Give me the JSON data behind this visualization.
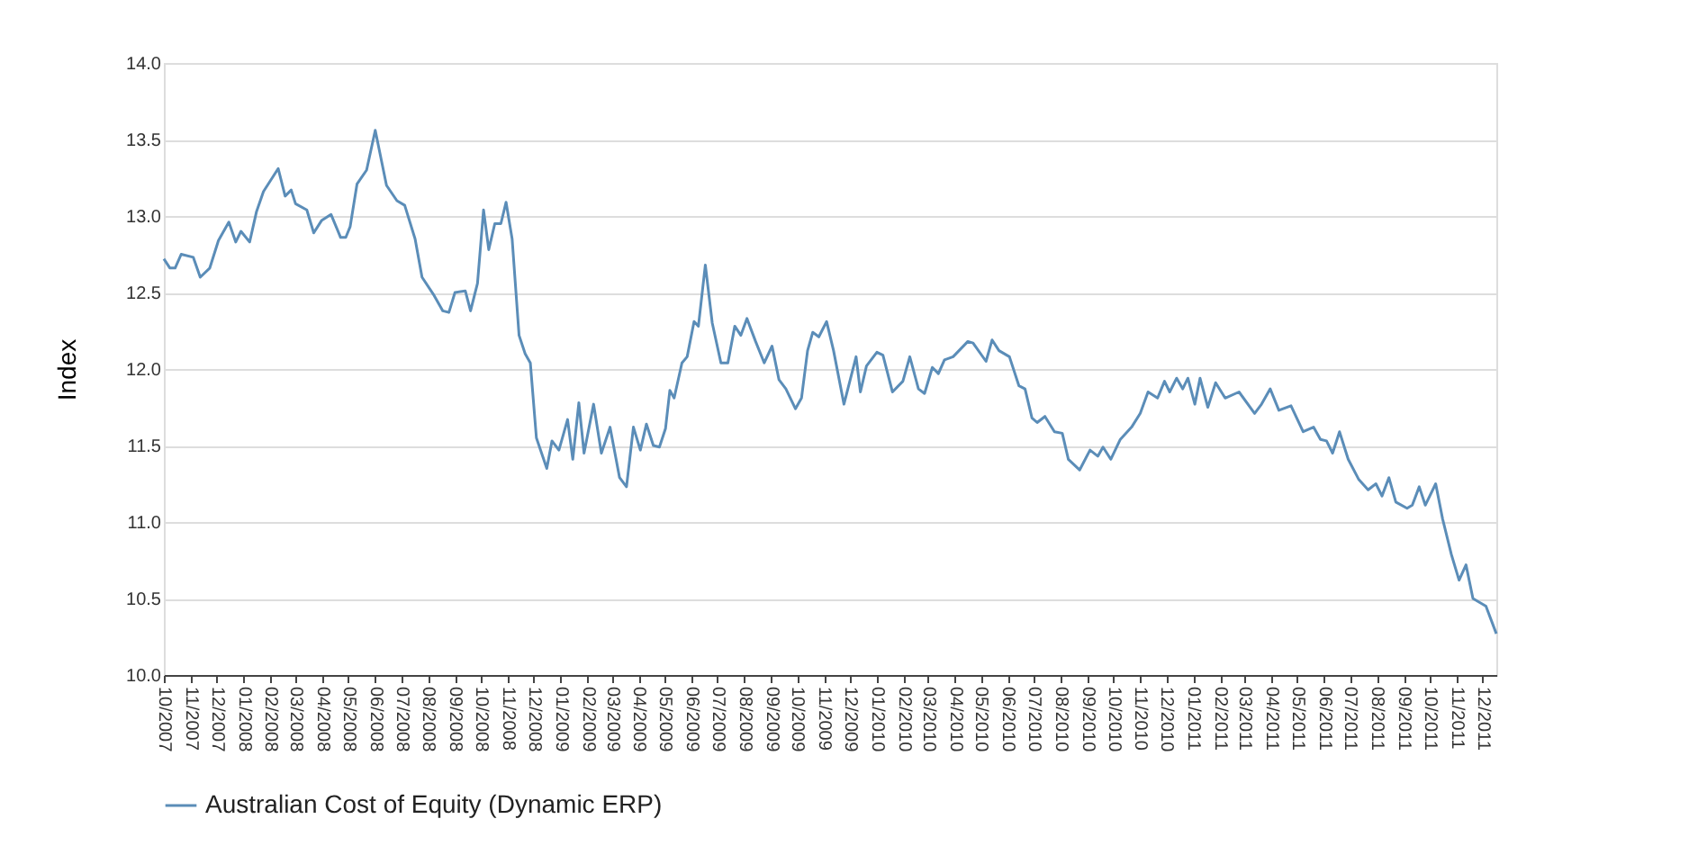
{
  "chart_data": {
    "type": "line",
    "ylabel": "Index",
    "legend": "bottom",
    "grid": "y",
    "line_style": "solid",
    "marker": "none",
    "xlim": [
      "2007-10-01",
      "2011-12-17"
    ],
    "xticks": [
      {
        "value": "2007-10",
        "label": "10/2007"
      },
      {
        "value": "2007-11",
        "label": "11/2007"
      },
      {
        "value": "2007-12",
        "label": "12/2007"
      },
      {
        "value": "2008-01",
        "label": "01/2008"
      },
      {
        "value": "2008-02",
        "label": "02/2008"
      },
      {
        "value": "2008-03",
        "label": "03/2008"
      },
      {
        "value": "2008-04",
        "label": "04/2008"
      },
      {
        "value": "2008-05",
        "label": "05/2008"
      },
      {
        "value": "2008-06",
        "label": "06/2008"
      },
      {
        "value": "2008-07",
        "label": "07/2008"
      },
      {
        "value": "2008-08",
        "label": "08/2008"
      },
      {
        "value": "2008-09",
        "label": "09/2008"
      },
      {
        "value": "2008-10",
        "label": "10/2008"
      },
      {
        "value": "2008-11",
        "label": "11/2008"
      },
      {
        "value": "2008-12",
        "label": "12/2008"
      },
      {
        "value": "2009-01",
        "label": "01/2009"
      },
      {
        "value": "2009-02",
        "label": "02/2009"
      },
      {
        "value": "2009-03",
        "label": "03/2009"
      },
      {
        "value": "2009-04",
        "label": "04/2009"
      },
      {
        "value": "2009-05",
        "label": "05/2009"
      },
      {
        "value": "2009-06",
        "label": "06/2009"
      },
      {
        "value": "2009-07",
        "label": "07/2009"
      },
      {
        "value": "2009-08",
        "label": "08/2009"
      },
      {
        "value": "2009-09",
        "label": "09/2009"
      },
      {
        "value": "2009-10",
        "label": "10/2009"
      },
      {
        "value": "2009-11",
        "label": "11/2009"
      },
      {
        "value": "2009-12",
        "label": "12/2009"
      },
      {
        "value": "2010-01",
        "label": "01/2010"
      },
      {
        "value": "2010-02",
        "label": "02/2010"
      },
      {
        "value": "2010-03",
        "label": "03/2010"
      },
      {
        "value": "2010-04",
        "label": "04/2010"
      },
      {
        "value": "2010-05",
        "label": "05/2010"
      },
      {
        "value": "2010-06",
        "label": "06/2010"
      },
      {
        "value": "2010-07",
        "label": "07/2010"
      },
      {
        "value": "2010-08",
        "label": "08/2010"
      },
      {
        "value": "2010-09",
        "label": "09/2010"
      },
      {
        "value": "2010-10",
        "label": "10/2010"
      },
      {
        "value": "2010-11",
        "label": "11/2010"
      },
      {
        "value": "2010-12",
        "label": "12/2010"
      },
      {
        "value": "2011-01",
        "label": "01/2011"
      },
      {
        "value": "2011-02",
        "label": "02/2011"
      },
      {
        "value": "2011-03",
        "label": "03/2011"
      },
      {
        "value": "2011-04",
        "label": "04/2011"
      },
      {
        "value": "2011-05",
        "label": "05/2011"
      },
      {
        "value": "2011-06",
        "label": "06/2011"
      },
      {
        "value": "2011-07",
        "label": "07/2011"
      },
      {
        "value": "2011-08",
        "label": "08/2011"
      },
      {
        "value": "2011-09",
        "label": "09/2011"
      },
      {
        "value": "2011-10",
        "label": "10/2011"
      },
      {
        "value": "2011-11",
        "label": "11/2011"
      },
      {
        "value": "2011-12",
        "label": "12/2011"
      }
    ],
    "ylim": [
      10,
      14
    ],
    "yticks": [
      {
        "value": 10,
        "label": "10.0"
      },
      {
        "value": 10.5,
        "label": "10.5"
      },
      {
        "value": 11,
        "label": "11.0"
      },
      {
        "value": 11.5,
        "label": "11.5"
      },
      {
        "value": 12,
        "label": "12.0"
      },
      {
        "value": 12.5,
        "label": "12.5"
      },
      {
        "value": 13,
        "label": "13.0"
      },
      {
        "value": 13.5,
        "label": "13.5"
      },
      {
        "value": 14,
        "label": "14.0"
      }
    ],
    "x": [
      "2007-10-01",
      "2007-10-08",
      "2007-10-14",
      "2007-10-21",
      "2007-11-04",
      "2007-11-12",
      "2007-11-23",
      "2007-12-03",
      "2007-12-15",
      "2007-12-23",
      "2007-12-29",
      "2008-01-08",
      "2008-01-16",
      "2008-01-24",
      "2008-02-10",
      "2008-02-18",
      "2008-02-25",
      "2008-03-01",
      "2008-03-14",
      "2008-03-22",
      "2008-03-31",
      "2008-04-11",
      "2008-04-22",
      "2008-04-28",
      "2008-05-03",
      "2008-05-11",
      "2008-05-22",
      "2008-06-01",
      "2008-06-14",
      "2008-06-26",
      "2008-07-05",
      "2008-07-17",
      "2008-07-25",
      "2008-08-08",
      "2008-08-18",
      "2008-08-25",
      "2008-09-01",
      "2008-09-13",
      "2008-09-19",
      "2008-09-27",
      "2008-10-04",
      "2008-10-10",
      "2008-10-17",
      "2008-10-24",
      "2008-10-30",
      "2008-11-06",
      "2008-11-14",
      "2008-11-21",
      "2008-11-27",
      "2008-12-04",
      "2008-12-16",
      "2008-12-22",
      "2008-12-30",
      "2009-01-09",
      "2009-01-15",
      "2009-01-22",
      "2009-01-28",
      "2009-02-08",
      "2009-02-17",
      "2009-02-27",
      "2009-03-10",
      "2009-03-18",
      "2009-03-26",
      "2009-04-03",
      "2009-04-10",
      "2009-04-18",
      "2009-04-25",
      "2009-05-02",
      "2009-05-07",
      "2009-05-12",
      "2009-05-21",
      "2009-05-27",
      "2009-06-04",
      "2009-06-09",
      "2009-06-17",
      "2009-06-25",
      "2009-07-05",
      "2009-07-13",
      "2009-07-21",
      "2009-07-28",
      "2009-08-04",
      "2009-08-14",
      "2009-08-24",
      "2009-09-02",
      "2009-09-10",
      "2009-09-18",
      "2009-09-29",
      "2009-10-06",
      "2009-10-13",
      "2009-10-19",
      "2009-10-26",
      "2009-11-04",
      "2009-11-12",
      "2009-11-24",
      "2009-12-08",
      "2009-12-13",
      "2009-12-20",
      "2010-01-01",
      "2010-01-08",
      "2010-01-19",
      "2010-01-31",
      "2010-02-08",
      "2010-02-18",
      "2010-02-25",
      "2010-03-06",
      "2010-03-13",
      "2010-03-20",
      "2010-03-30",
      "2010-04-16",
      "2010-04-22",
      "2010-05-07",
      "2010-05-14",
      "2010-05-22",
      "2010-06-03",
      "2010-06-14",
      "2010-06-21",
      "2010-06-29",
      "2010-07-05",
      "2010-07-14",
      "2010-07-25",
      "2010-08-03",
      "2010-08-10",
      "2010-08-23",
      "2010-09-04",
      "2010-09-13",
      "2010-09-19",
      "2010-09-28",
      "2010-10-09",
      "2010-10-22",
      "2010-11-01",
      "2010-11-10",
      "2010-11-21",
      "2010-11-29",
      "2010-12-05",
      "2010-12-13",
      "2010-12-20",
      "2010-12-26",
      "2011-01-03",
      "2011-01-09",
      "2011-01-18",
      "2011-01-27",
      "2011-02-07",
      "2011-02-23",
      "2011-03-13",
      "2011-03-21",
      "2011-03-31",
      "2011-04-10",
      "2011-04-24",
      "2011-05-08",
      "2011-05-20",
      "2011-05-28",
      "2011-06-04",
      "2011-06-11",
      "2011-06-19",
      "2011-06-29",
      "2011-07-11",
      "2011-07-22",
      "2011-07-31",
      "2011-08-07",
      "2011-08-15",
      "2011-08-23",
      "2011-09-05",
      "2011-09-11",
      "2011-09-19",
      "2011-09-26",
      "2011-10-08",
      "2011-10-16",
      "2011-10-26",
      "2011-11-04",
      "2011-11-12",
      "2011-11-20",
      "2011-12-05",
      "2011-12-17"
    ],
    "series": [
      {
        "name": "Australian Cost of Equity (Dynamic ERP)",
        "color": "#5b8db8",
        "values": [
          12.72,
          12.66,
          12.66,
          12.75,
          12.73,
          12.6,
          12.66,
          12.84,
          12.96,
          12.83,
          12.9,
          12.83,
          13.03,
          13.16,
          13.31,
          13.13,
          13.17,
          13.08,
          13.04,
          12.89,
          12.97,
          13.01,
          12.86,
          12.86,
          12.93,
          13.21,
          13.3,
          13.56,
          13.2,
          13.1,
          13.07,
          12.85,
          12.6,
          12.48,
          12.38,
          12.37,
          12.5,
          12.51,
          12.38,
          12.56,
          13.04,
          12.78,
          12.95,
          12.95,
          13.09,
          12.85,
          12.22,
          12.1,
          12.04,
          11.55,
          11.35,
          11.53,
          11.47,
          11.67,
          11.41,
          11.78,
          11.45,
          11.77,
          11.45,
          11.62,
          11.29,
          11.23,
          11.62,
          11.47,
          11.64,
          11.5,
          11.49,
          11.61,
          11.86,
          11.81,
          12.04,
          12.08,
          12.31,
          12.28,
          12.68,
          12.3,
          12.04,
          12.04,
          12.28,
          12.22,
          12.33,
          12.18,
          12.04,
          12.15,
          11.93,
          11.87,
          11.74,
          11.81,
          12.12,
          12.24,
          12.21,
          12.31,
          12.12,
          11.77,
          12.08,
          11.85,
          12.02,
          12.11,
          12.09,
          11.85,
          11.92,
          12.08,
          11.87,
          11.84,
          12.01,
          11.97,
          12.06,
          12.08,
          12.18,
          12.17,
          12.05,
          12.19,
          12.12,
          12.08,
          11.89,
          11.87,
          11.68,
          11.65,
          11.69,
          11.59,
          11.58,
          11.41,
          11.34,
          11.47,
          11.43,
          11.49,
          11.41,
          11.54,
          11.62,
          11.71,
          11.85,
          11.81,
          11.92,
          11.85,
          11.94,
          11.87,
          11.94,
          11.77,
          11.94,
          11.75,
          11.91,
          11.81,
          11.85,
          11.71,
          11.77,
          11.87,
          11.73,
          11.76,
          11.59,
          11.62,
          11.54,
          11.53,
          11.45,
          11.59,
          11.41,
          11.28,
          11.21,
          11.25,
          11.17,
          11.29,
          11.13,
          11.09,
          11.11,
          11.23,
          11.11,
          11.25,
          11.02,
          10.79,
          10.62,
          10.72,
          10.5,
          10.45,
          10.27
        ]
      }
    ]
  }
}
